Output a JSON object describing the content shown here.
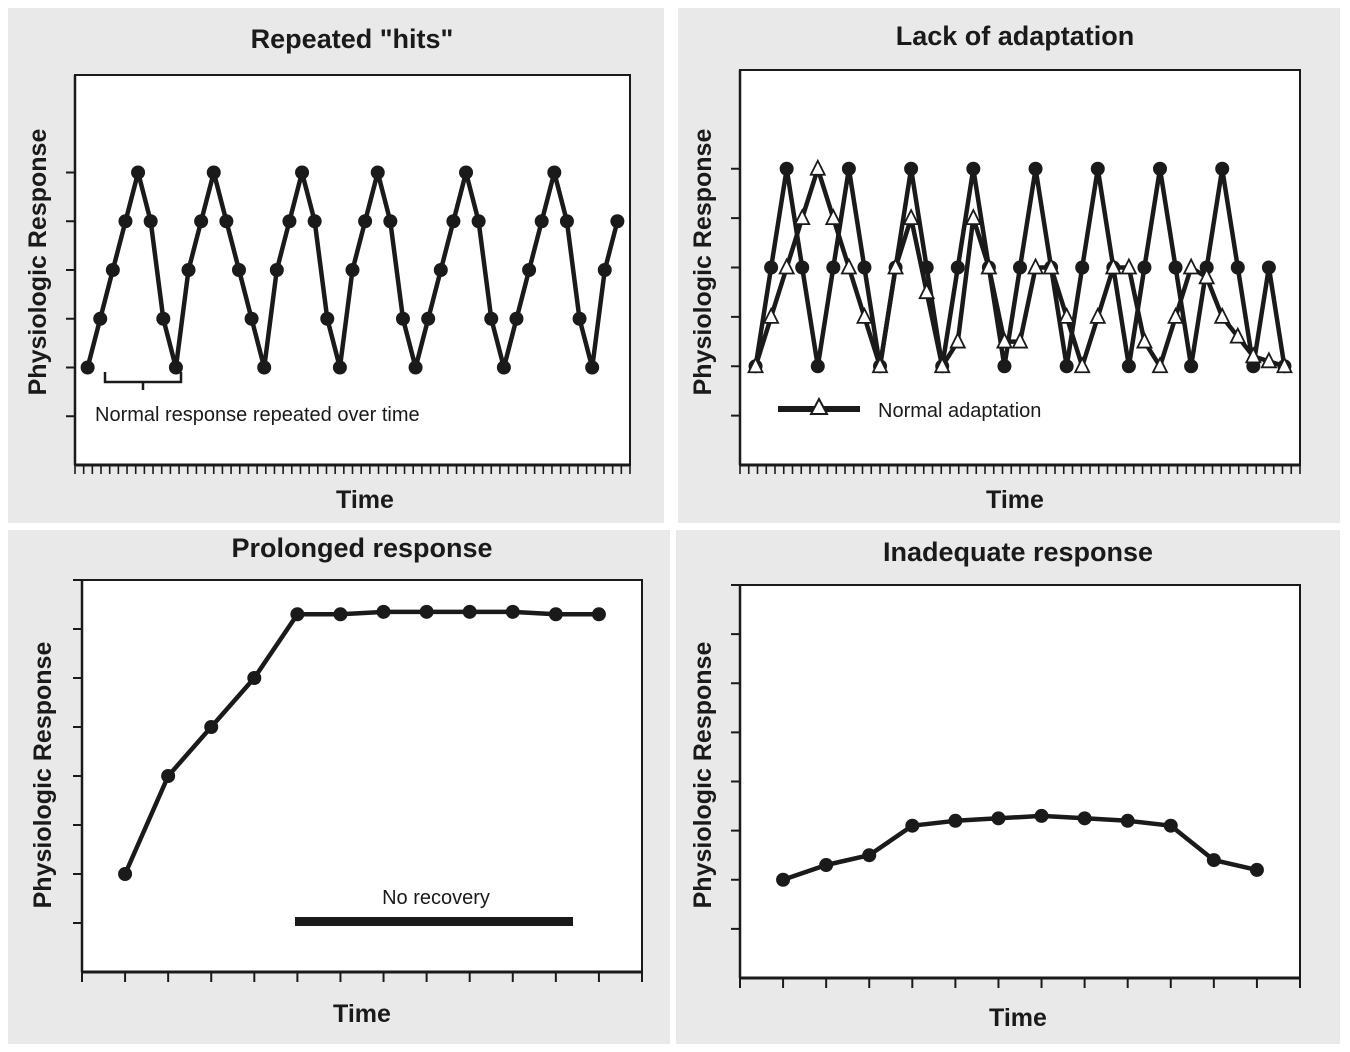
{
  "colors": {
    "panel_background": "#e9e9e9",
    "plot_background": "#ffffff",
    "series_line": "#1a1a1a",
    "marker_fill": "#1a1a1a",
    "adaptation_marker_fill": "#ffffff"
  },
  "chart_data": [
    {
      "type": "line",
      "title": "Repeated \"hits\"",
      "xlabel": "Time",
      "ylabel": "Physiologic Response",
      "xlim": [
        0,
        44
      ],
      "ylim": [
        -2,
        6
      ],
      "annotation": "Normal response repeated over time",
      "series": [
        {
          "marker": "filled-circle",
          "x": [
            1,
            2,
            3,
            4,
            5,
            6,
            7,
            8,
            9,
            10,
            11,
            12,
            13,
            14,
            15,
            16,
            17,
            18,
            19,
            20,
            21,
            22,
            23,
            24,
            25,
            26,
            27,
            28,
            29,
            30,
            31,
            32,
            33,
            34,
            35,
            36,
            37,
            38,
            39,
            40,
            41,
            42,
            43
          ],
          "values": [
            0,
            1,
            2,
            3,
            4,
            3,
            1,
            0,
            2,
            3,
            4,
            3,
            2,
            1,
            0,
            2,
            3,
            4,
            3,
            1,
            0,
            2,
            3,
            4,
            3,
            1,
            0,
            1,
            2,
            3,
            4,
            3,
            1,
            0,
            1,
            2,
            3,
            4,
            3,
            1,
            0,
            2,
            3
          ]
        }
      ]
    },
    {
      "type": "line",
      "title": "Lack of adaptation",
      "xlabel": "Time",
      "ylabel": "Physiologic Response",
      "xlim": [
        0,
        36
      ],
      "ylim": [
        -2,
        6
      ],
      "legend": {
        "label": "Normal adaptation",
        "position": "bottom-left"
      },
      "series": [
        {
          "marker": "filled-circle",
          "x": [
            1,
            2,
            3,
            4,
            5,
            6,
            7,
            8,
            9,
            10,
            11,
            12,
            13,
            14,
            15,
            16,
            17,
            18,
            19,
            20,
            21,
            22,
            23,
            24,
            25,
            26,
            27,
            28,
            29,
            30,
            31,
            32,
            33,
            34,
            35
          ],
          "values": [
            0,
            2,
            4,
            2,
            0,
            2,
            4,
            2,
            0,
            2,
            4,
            2,
            0,
            2,
            4,
            2,
            0,
            2,
            4,
            2,
            0,
            2,
            4,
            2,
            0,
            2,
            4,
            2,
            0,
            2,
            4,
            2,
            0,
            2,
            0
          ]
        },
        {
          "name": "Normal adaptation",
          "marker": "open-triangle",
          "x": [
            1,
            2,
            3,
            4,
            5,
            6,
            7,
            8,
            9,
            10,
            11,
            12,
            13,
            14,
            15,
            16,
            17,
            18,
            19,
            20,
            21,
            22,
            23,
            24,
            25,
            26,
            27,
            28,
            29,
            30,
            31,
            32,
            33,
            34,
            35
          ],
          "values": [
            0,
            1,
            2,
            3,
            4,
            3,
            2,
            1,
            0,
            2,
            3,
            1.5,
            0,
            0.5,
            3,
            2,
            0.5,
            0.5,
            2,
            2,
            1,
            0,
            1,
            2,
            2,
            0.5,
            0,
            1,
            2,
            1.8,
            1,
            0.6,
            0.2,
            0.1,
            0
          ]
        }
      ]
    },
    {
      "type": "line",
      "title": "Prolonged response",
      "xlabel": "Time",
      "ylabel": "Physiologic Response",
      "xlim": [
        0,
        13
      ],
      "ylim": [
        -1,
        7
      ],
      "annotation": "No recovery",
      "series": [
        {
          "marker": "filled-circle",
          "x": [
            1,
            2,
            3,
            4,
            5,
            6,
            7,
            8,
            9,
            10,
            11,
            12
          ],
          "values": [
            1,
            3,
            4,
            5,
            6.3,
            6.3,
            6.35,
            6.35,
            6.35,
            6.35,
            6.3,
            6.3
          ]
        }
      ]
    },
    {
      "type": "line",
      "title": "Inadequate response",
      "xlabel": "Time",
      "ylabel": "Physiologic Response",
      "xlim": [
        0,
        13
      ],
      "ylim": [
        -1,
        7
      ],
      "series": [
        {
          "marker": "filled-circle",
          "x": [
            1,
            2,
            3,
            4,
            5,
            6,
            7,
            8,
            9,
            10,
            11,
            12
          ],
          "values": [
            1,
            1.3,
            1.5,
            2.1,
            2.2,
            2.25,
            2.3,
            2.25,
            2.2,
            2.1,
            1.4,
            1.2
          ]
        }
      ]
    }
  ]
}
